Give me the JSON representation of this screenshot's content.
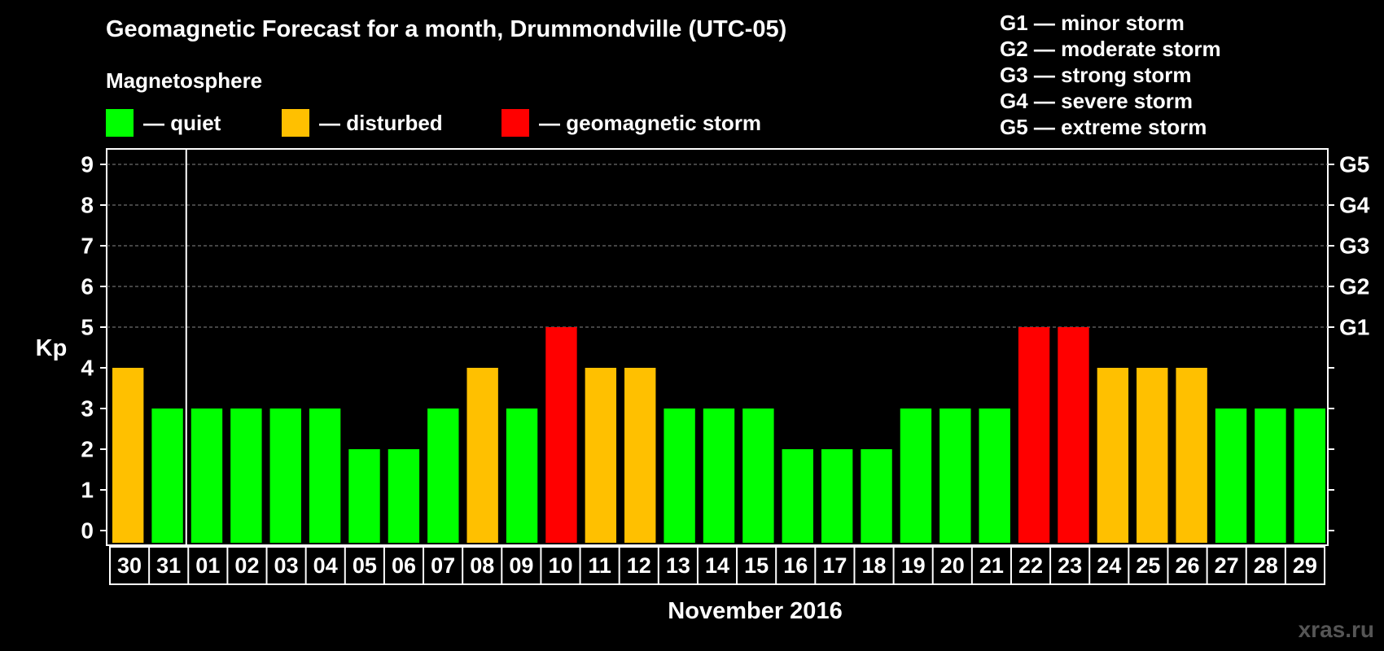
{
  "title": "Geomagnetic Forecast for a month, Drummondville (UTC-05)",
  "legend": {
    "heading": "Magnetosphere",
    "items": [
      {
        "label": "— quiet",
        "color": "#00ff00"
      },
      {
        "label": "— disturbed",
        "color": "#ffc000"
      },
      {
        "label": "— geomagnetic storm",
        "color": "#ff0000"
      }
    ]
  },
  "storm_scale": [
    "G1 — minor storm",
    "G2 — moderate storm",
    "G3 — strong storm",
    "G4 — severe storm",
    "G5 — extreme storm"
  ],
  "watermark": "xras.ru",
  "chart_data": {
    "type": "bar",
    "ylabel": "Kp",
    "xlabel": "November 2016",
    "ylim": [
      0,
      9
    ],
    "yticks": [
      "0",
      "1",
      "2",
      "3",
      "4",
      "5",
      "6",
      "7",
      "8",
      "9"
    ],
    "right_tick_labels": [
      {
        "value": 5,
        "label": "G1"
      },
      {
        "value": 6,
        "label": "G2"
      },
      {
        "value": 7,
        "label": "G3"
      },
      {
        "value": 8,
        "label": "G4"
      },
      {
        "value": 9,
        "label": "G5"
      }
    ],
    "grid": "dashed at 5-9",
    "categories": [
      "30",
      "31",
      "01",
      "02",
      "03",
      "04",
      "05",
      "06",
      "07",
      "08",
      "09",
      "10",
      "11",
      "12",
      "13",
      "14",
      "15",
      "16",
      "17",
      "18",
      "19",
      "20",
      "21",
      "22",
      "23",
      "24",
      "25",
      "26",
      "27",
      "28",
      "29"
    ],
    "values": [
      4,
      3,
      3,
      3,
      3,
      3,
      2,
      2,
      3,
      4,
      3,
      5,
      4,
      4,
      3,
      3,
      3,
      2,
      2,
      2,
      3,
      3,
      3,
      5,
      5,
      4,
      4,
      4,
      3,
      3,
      3
    ],
    "thresholds": {
      "quiet_max": 3,
      "disturbed": 4,
      "storm_min": 5
    },
    "colors": {
      "quiet": "#00ff00",
      "disturbed": "#ffc000",
      "storm": "#ff0000"
    }
  }
}
